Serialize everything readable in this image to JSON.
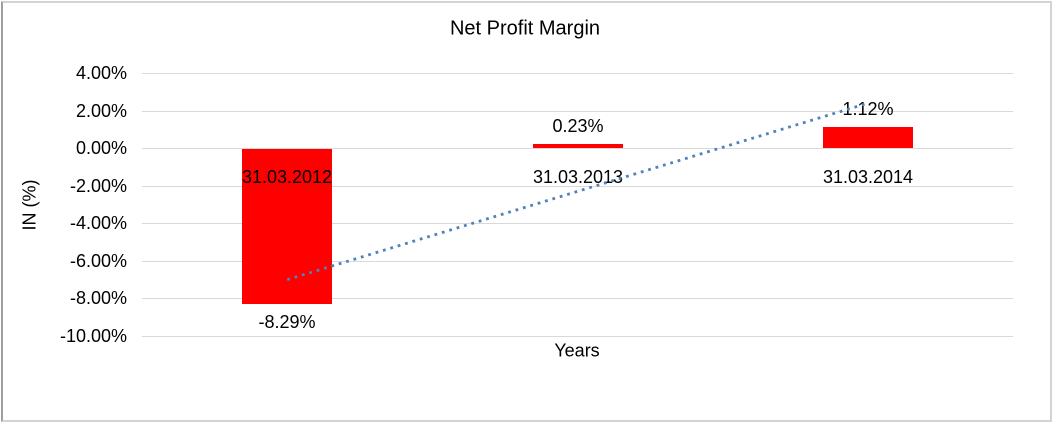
{
  "chart": {
    "title": "Net Profit Margin",
    "x_axis_title": "Years",
    "y_axis_title": "IN (%)"
  },
  "chart_data": {
    "type": "bar",
    "title": "Net Profit Margin",
    "xlabel": "Years",
    "ylabel": "IN (%)",
    "categories": [
      "31.03.2012",
      "31.03.2013",
      "31.03.2014"
    ],
    "values": [
      -8.29,
      0.23,
      1.12
    ],
    "data_labels": [
      "-8.29%",
      "0.23%",
      "1.12%"
    ],
    "y_ticks": [
      "4.00%",
      "2.00%",
      "0.00%",
      "-2.00%",
      "-4.00%",
      "-6.00%",
      "-8.00%",
      "-10.00%"
    ],
    "y_tick_values": [
      4,
      2,
      0,
      -2,
      -4,
      -6,
      -8,
      -10
    ],
    "ylim": [
      -10,
      4
    ],
    "grid": "horizontal",
    "legend": "none",
    "bar_color": "#ff0000",
    "gridline_color": "#d9d9d9",
    "text_color": "#000000",
    "trendline": {
      "type": "linear",
      "style": "dotted",
      "color": "#4f81bd",
      "start_value": -7.02,
      "end_value": 2.39
    }
  }
}
